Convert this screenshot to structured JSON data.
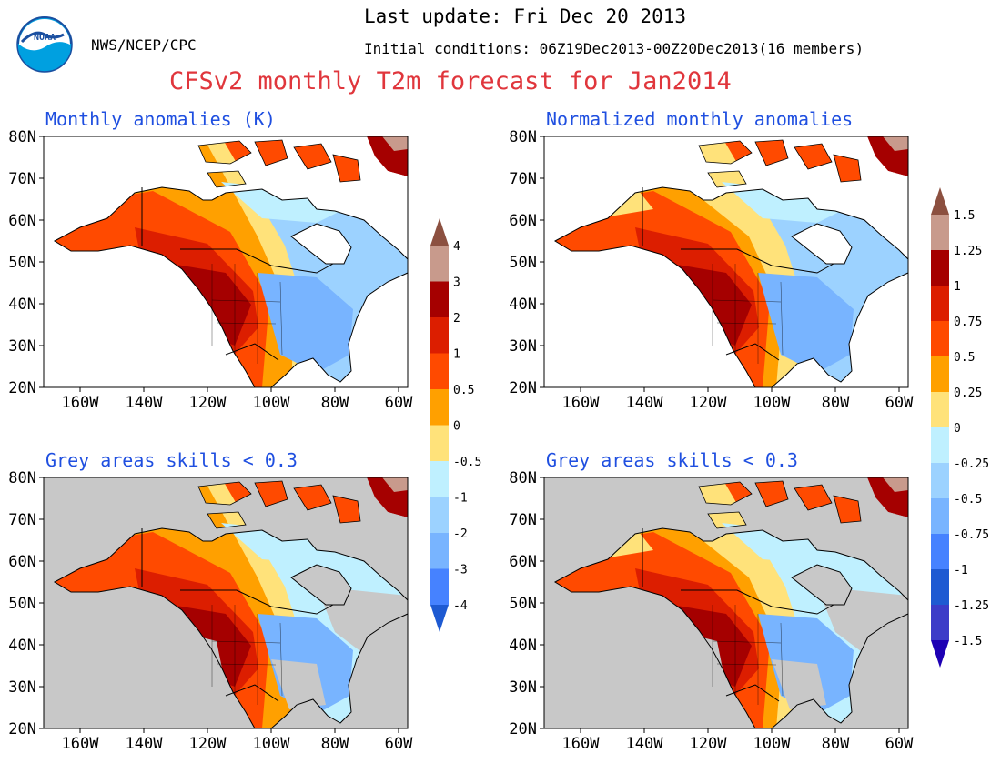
{
  "header": {
    "org": "NWS/NCEP/CPC",
    "last_update": "Last update: Fri Dec 20 2013",
    "initial_conditions": "Initial conditions: 06Z19Dec2013-00Z20Dec2013(16 members)",
    "title": "CFSv2 monthly T2m forecast for Jan2014",
    "logo_text": "NOAA"
  },
  "panels": [
    {
      "id": "tl",
      "title": "Monthly anomalies (K)"
    },
    {
      "id": "tr",
      "title": "Normalized monthly anomalies"
    },
    {
      "id": "bl",
      "title": "Grey areas skills < 0.3"
    },
    {
      "id": "br",
      "title": "Grey areas skills < 0.3"
    }
  ],
  "axes": {
    "lat_labels": [
      "80N",
      "70N",
      "60N",
      "50N",
      "40N",
      "30N",
      "20N"
    ],
    "lon_labels": [
      "160W",
      "140W",
      "120W",
      "100W",
      "80W",
      "60W"
    ]
  },
  "colorbar_left": {
    "labels": [
      "4",
      "3",
      "2",
      "1",
      "0.5",
      "0",
      "-0.5",
      "-1",
      "-2",
      "-3",
      "-4"
    ]
  },
  "colorbar_right": {
    "labels": [
      "1.5",
      "1.25",
      "1",
      "0.75",
      "0.5",
      "0.25",
      "0",
      "-0.25",
      "-0.5",
      "-0.75",
      "-1",
      "-1.25",
      "-1.5"
    ]
  },
  "colors": {
    "title_red": "#e0363c",
    "panel_title_blue": "#1f4fe0",
    "skill_grey": "#c8c8c8",
    "scale_warm": [
      "#ffe27a",
      "#ffa000",
      "#ff4a00",
      "#dc1e00",
      "#a50000",
      "#c89a8c",
      "#8c5040"
    ],
    "scale_cool": [
      "#bff0ff",
      "#9cd2ff",
      "#78b4ff",
      "#4682ff",
      "#1e5ad2",
      "#3c3cc8",
      "#1e00b4"
    ]
  }
}
